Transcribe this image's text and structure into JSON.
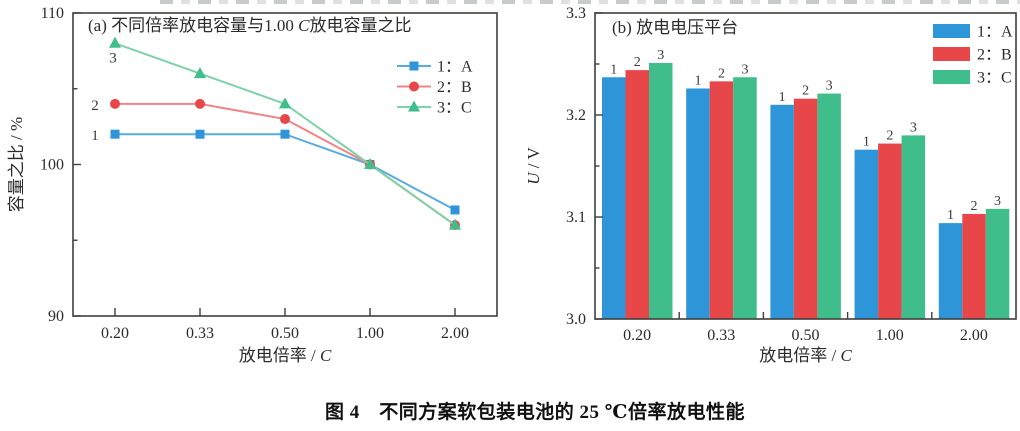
{
  "figure": {
    "caption": "图 4　不同方案软包装电池的 25 ℃倍率放电性能"
  },
  "chart_data": [
    {
      "id": "a",
      "type": "line",
      "title": "(a) 不同倍率放电容量与1.00 C放电容量之比",
      "title_parts": [
        {
          "t": "(a) 不同倍率放电容量与1.00 "
        },
        {
          "t": "C",
          "i": 1
        },
        {
          "t": "放电容量之比"
        }
      ],
      "xlabel": "放电倍率 / C",
      "xlabel_parts": [
        {
          "t": "放电倍率 / "
        },
        {
          "t": "C",
          "i": 1
        }
      ],
      "ylabel": "容量之比 / %",
      "ylabel_parts": [
        {
          "t": "容量之比 / %"
        }
      ],
      "categories": [
        "0.20",
        "0.33",
        "0.50",
        "1.00",
        "2.00"
      ],
      "ylim": [
        90,
        110
      ],
      "yticks": [
        "90",
        "100",
        "110"
      ],
      "ytick_values": [
        90,
        100,
        110
      ],
      "yticks_minor": [
        95,
        105
      ],
      "grid": false,
      "legend_position": "upper right inside",
      "series": [
        {
          "num": "1",
          "letter": "A",
          "label": "1：A",
          "marker": "square",
          "color": "#2E96D8",
          "line_color": "#58ACE0",
          "values": [
            102,
            102,
            102,
            100,
            97
          ]
        },
        {
          "num": "2",
          "letter": "B",
          "label": "2：B",
          "marker": "circle",
          "color": "#E8474A",
          "line_color": "#F08486",
          "values": [
            104,
            104,
            103,
            100,
            96
          ]
        },
        {
          "num": "3",
          "letter": "C",
          "label": "3：C",
          "marker": "triangle",
          "color": "#3FBE8C",
          "line_color": "#7ED2A7",
          "values": [
            108,
            106,
            104,
            100,
            96
          ]
        }
      ]
    },
    {
      "id": "b",
      "type": "bar",
      "title": "(b) 放电电压平台",
      "title_parts": [
        {
          "t": "(b) 放电电压平台"
        }
      ],
      "xlabel": "放电倍率 / C",
      "xlabel_parts": [
        {
          "t": "放电倍率 / "
        },
        {
          "t": "C",
          "i": 1
        }
      ],
      "ylabel": "U / V",
      "ylabel_parts": [
        {
          "t": "U",
          "i": 1
        },
        {
          "t": " / V"
        }
      ],
      "categories": [
        "0.20",
        "0.33",
        "0.50",
        "1.00",
        "2.00"
      ],
      "ylim": [
        3.0,
        3.3
      ],
      "yticks": [
        "3.0",
        "3.1",
        "3.2",
        "3.3"
      ],
      "ytick_values": [
        3.0,
        3.1,
        3.2,
        3.3
      ],
      "yticks_minor": [
        3.05,
        3.15,
        3.25
      ],
      "grid": false,
      "legend_position": "upper right inside",
      "series": [
        {
          "num": "1",
          "letter": "A",
          "label": "1：A",
          "color": "#2E96D8",
          "values": [
            3.237,
            3.226,
            3.21,
            3.166,
            3.094
          ]
        },
        {
          "num": "2",
          "letter": "B",
          "label": "2：B",
          "color": "#E8474A",
          "values": [
            3.244,
            3.233,
            3.216,
            3.172,
            3.103
          ]
        },
        {
          "num": "3",
          "letter": "C",
          "label": "3：C",
          "color": "#3FBE8C",
          "values": [
            3.251,
            3.237,
            3.221,
            3.18,
            3.108
          ]
        }
      ]
    }
  ]
}
